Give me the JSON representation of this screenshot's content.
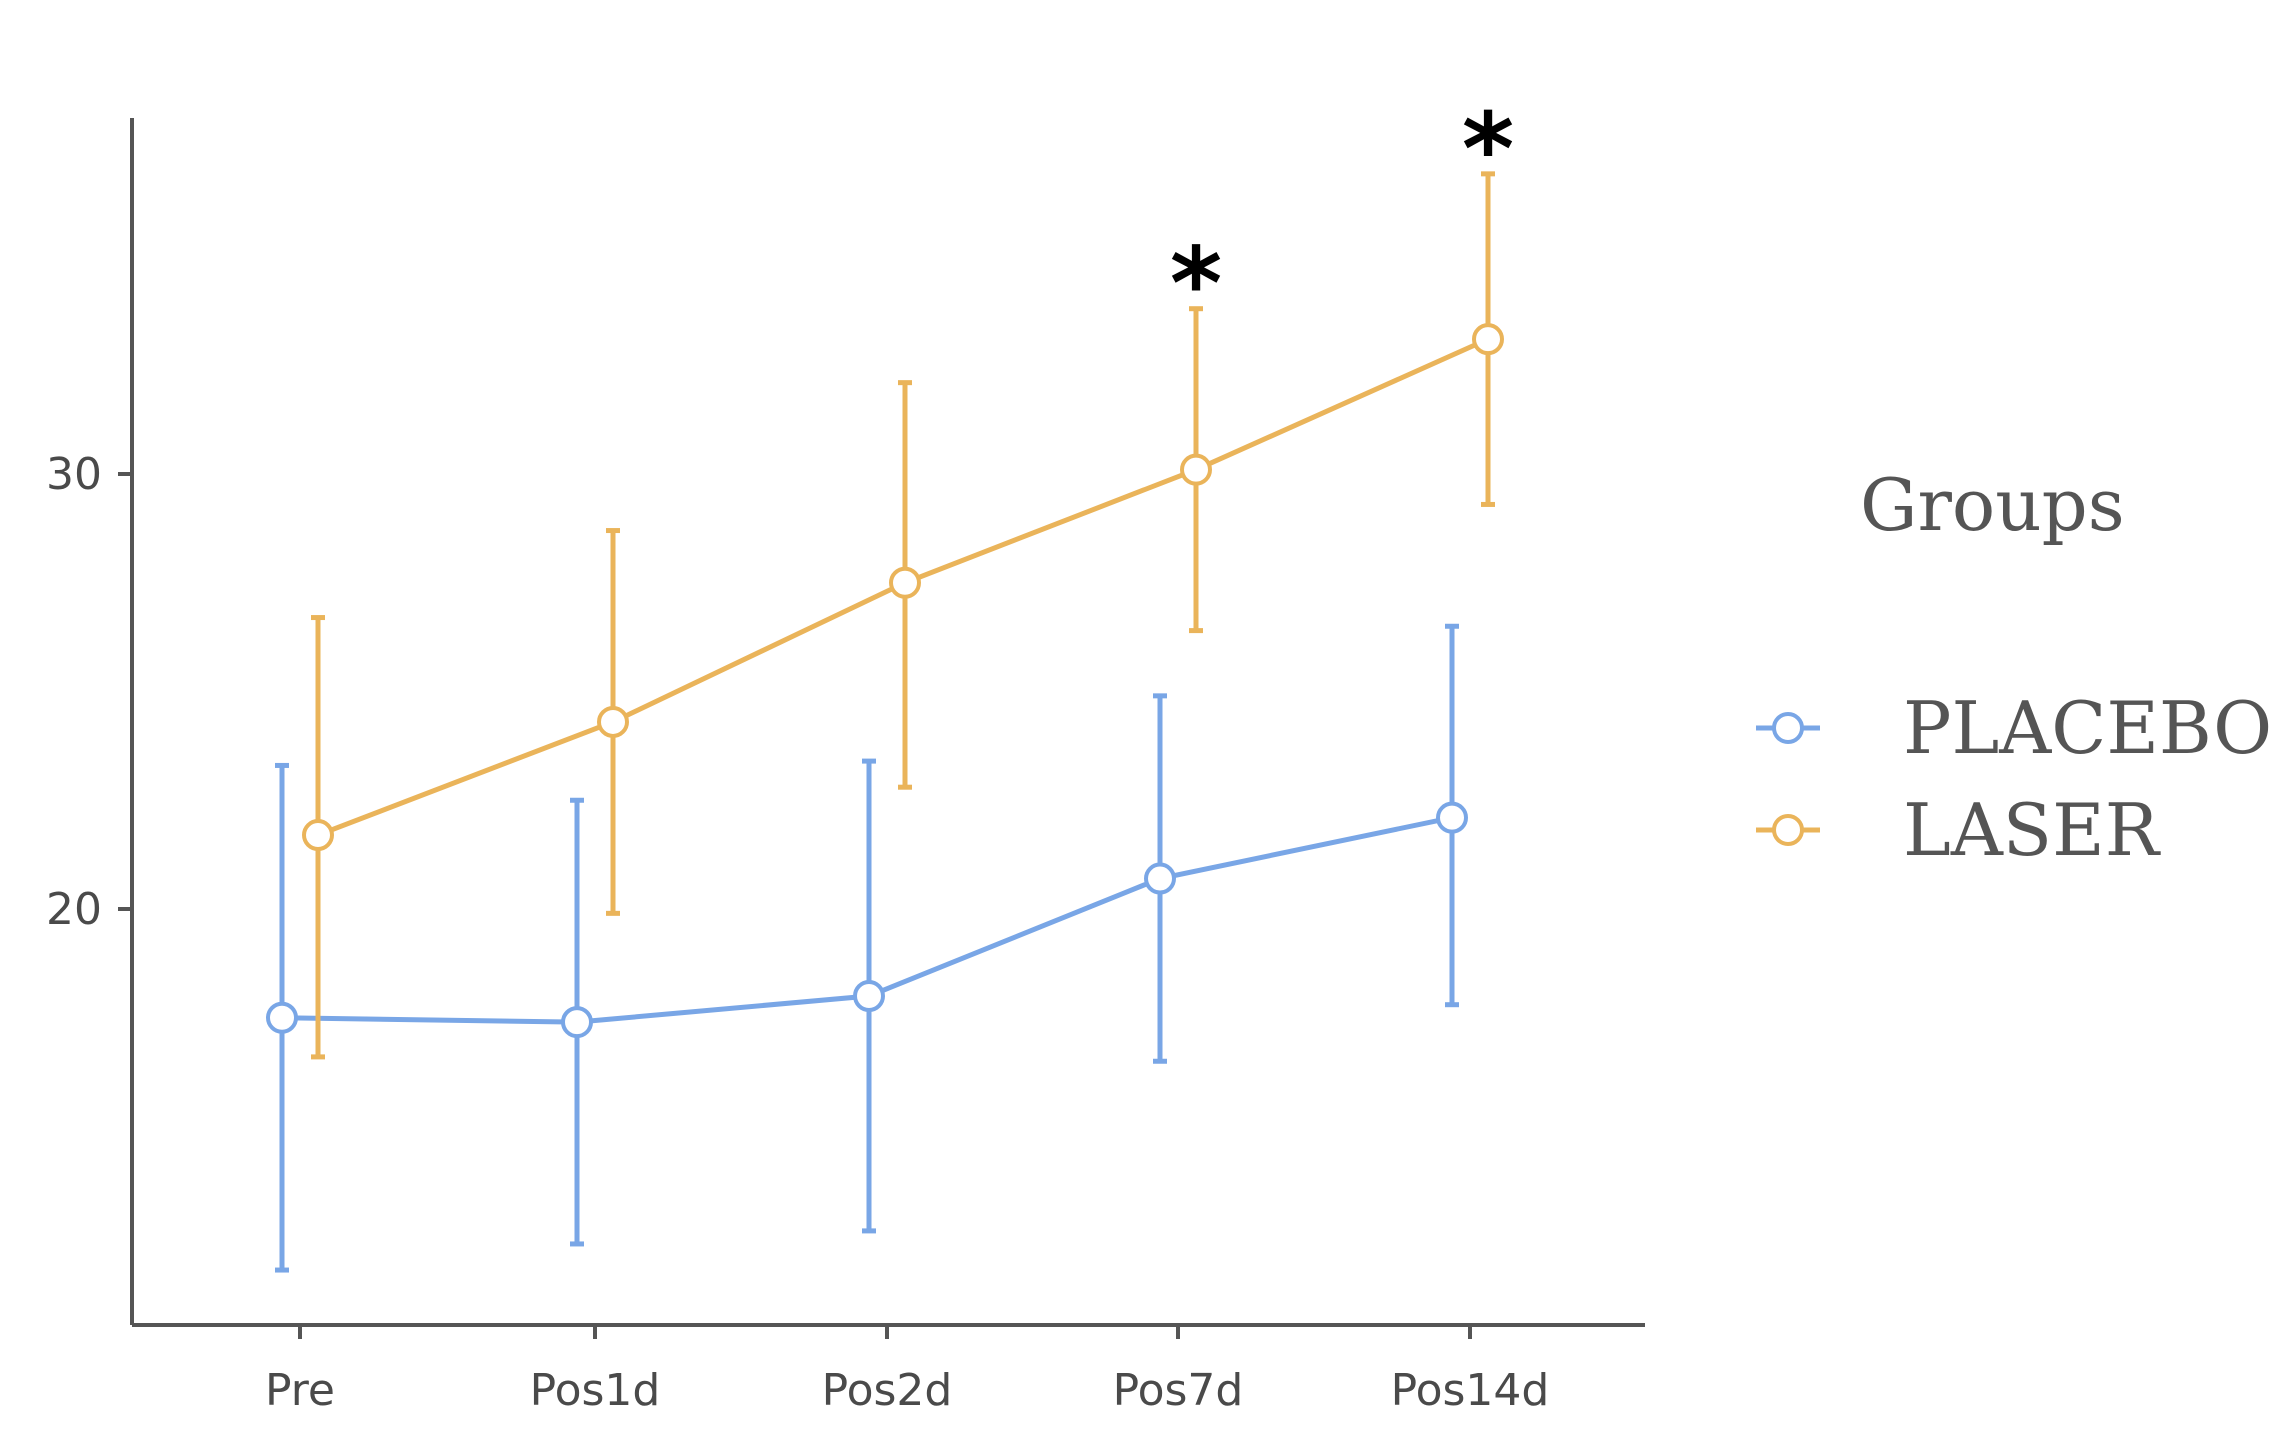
{
  "chart_data": {
    "type": "line",
    "title": "",
    "xlabel": "",
    "ylabel": "",
    "categories": [
      "Pre",
      "Pos1d",
      "Pos2d",
      "Pos7d",
      "Pos14d"
    ],
    "y_ticks": [
      20,
      30
    ],
    "ylim": [
      10.5,
      38.2
    ],
    "grid": false,
    "legend": {
      "title": "Groups",
      "placement": "right",
      "entries": [
        "PLACEBO",
        "LASER"
      ]
    },
    "series": [
      {
        "name": "PLACEBO",
        "color": "#79a6e6",
        "values": [
          17.5,
          17.4,
          18.0,
          20.7,
          22.1
        ],
        "upper": [
          23.3,
          22.5,
          23.4,
          24.9,
          26.5
        ],
        "lower": [
          11.7,
          12.3,
          12.6,
          16.5,
          17.8
        ]
      },
      {
        "name": "LASER",
        "color": "#eab45a",
        "values": [
          21.7,
          24.3,
          27.5,
          30.1,
          33.1
        ],
        "upper": [
          26.7,
          28.7,
          32.1,
          33.8,
          36.9
        ],
        "lower": [
          16.6,
          19.9,
          22.8,
          26.4,
          29.3
        ]
      }
    ],
    "annotations": [
      {
        "category": "Pos7d",
        "text": "*"
      },
      {
        "category": "Pos14d",
        "text": "*"
      }
    ]
  }
}
